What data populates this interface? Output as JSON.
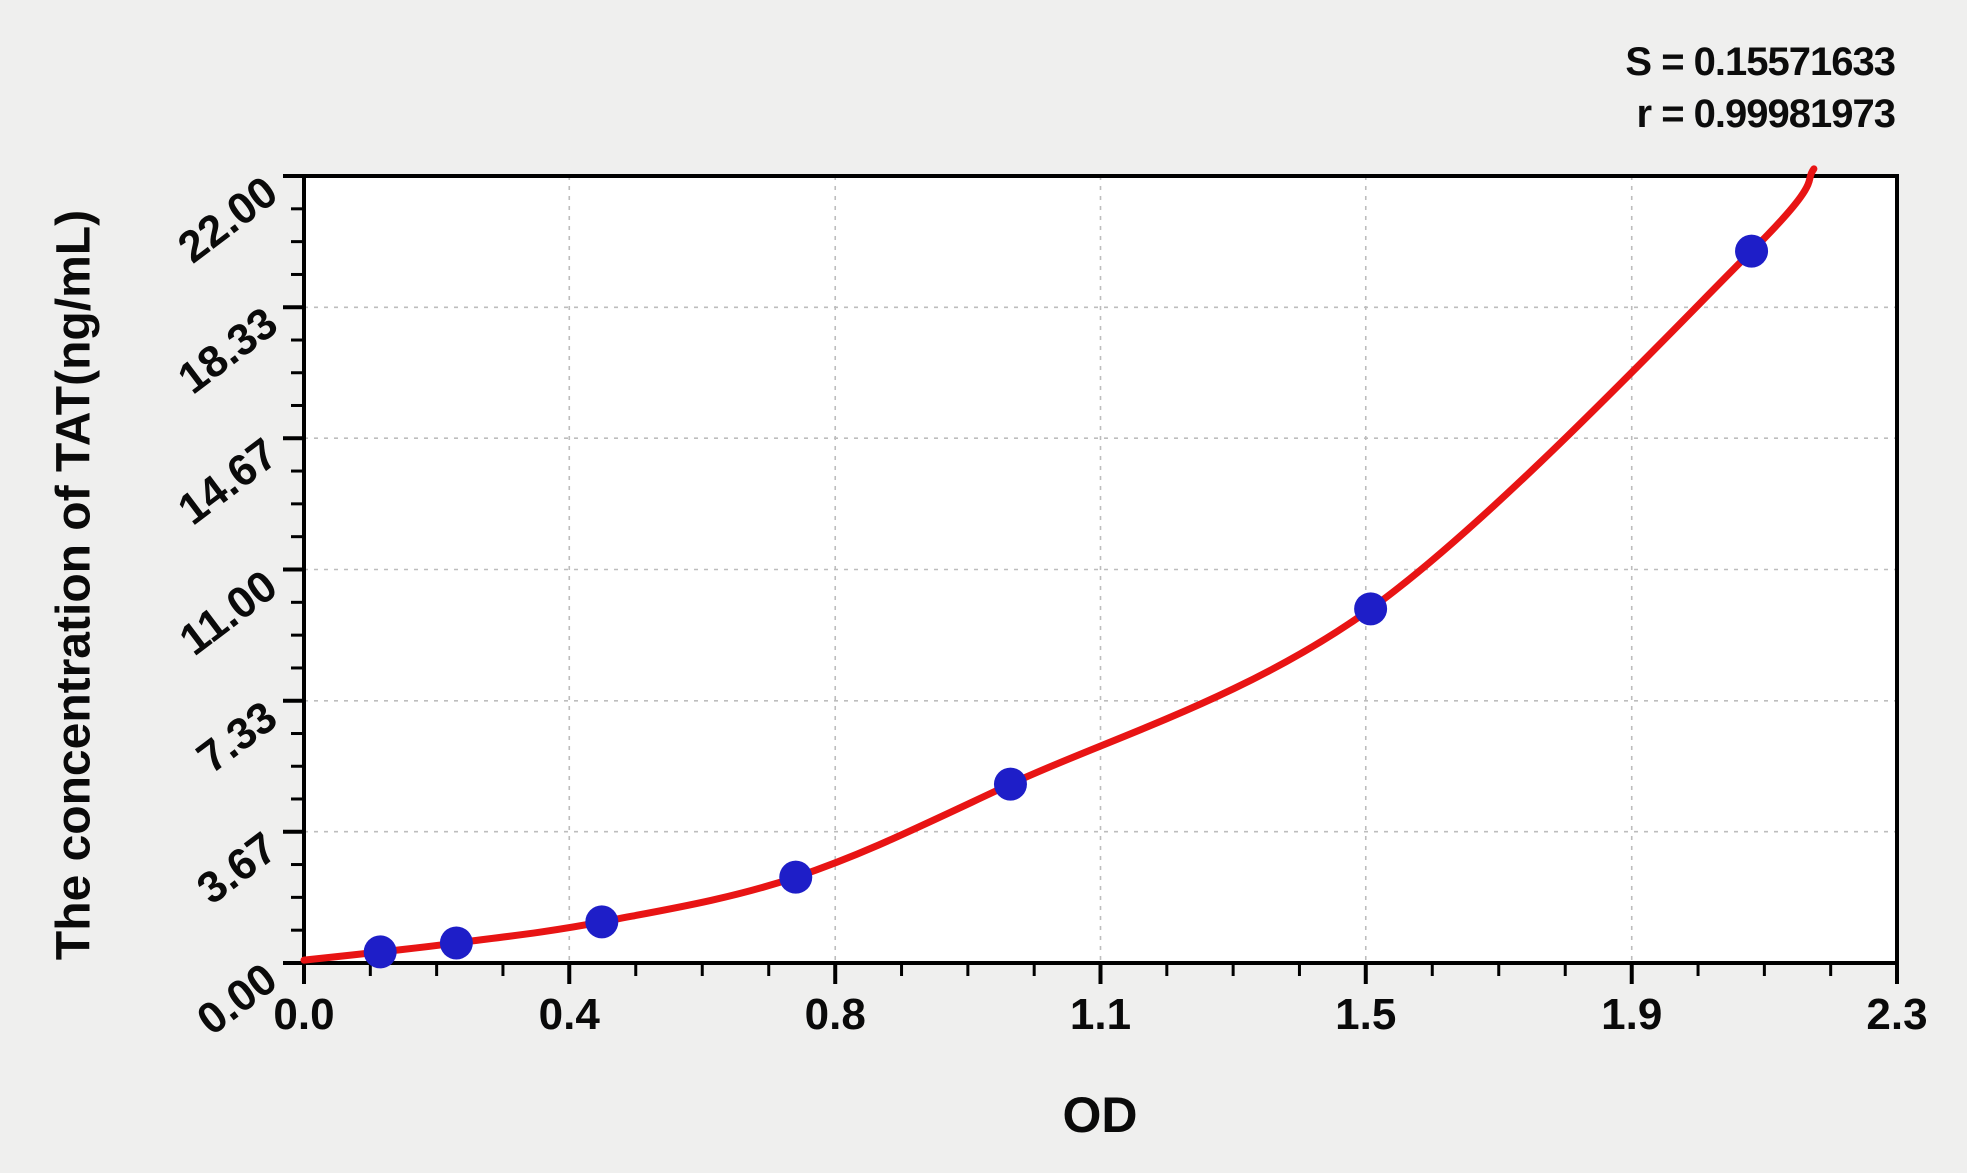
{
  "figure": {
    "background": "#efefee",
    "plot_background": "#ffffff"
  },
  "stats": {
    "s_label": "S = 0.15571633",
    "r_label": "r = 0.99981973"
  },
  "chart_data": {
    "type": "scatter",
    "title": "",
    "xlabel": "OD",
    "ylabel": "The concentration of TAT(ng/mL)",
    "xlim": [
      0,
      2.3
    ],
    "ylim": [
      0,
      22
    ],
    "x_tick_values": [
      0,
      0.383,
      0.767,
      1.15,
      1.533,
      1.917,
      2.3
    ],
    "x_tick_labels": [
      "0.0",
      "0.4",
      "0.8",
      "1.1",
      "1.5",
      "1.9",
      "2.3"
    ],
    "y_tick_values": [
      0,
      3.67,
      7.33,
      11.0,
      14.67,
      18.33,
      22.0
    ],
    "y_tick_labels": [
      "0.00",
      "3.67",
      "7.33",
      "11.00",
      "14.67",
      "18.33",
      "22.00"
    ],
    "minor_ticks_per_interval": 3,
    "grid": "dashed",
    "legend": "none",
    "points": [
      [
        0.11,
        0.31
      ],
      [
        0.22,
        0.56
      ],
      [
        0.43,
        1.15
      ],
      [
        0.71,
        2.4
      ],
      [
        1.02,
        5.0
      ],
      [
        1.54,
        9.9
      ],
      [
        2.09,
        19.9
      ]
    ],
    "fit_curve": [
      [
        0.0,
        0.08
      ],
      [
        0.11,
        0.31
      ],
      [
        0.22,
        0.56
      ],
      [
        0.43,
        1.15
      ],
      [
        0.71,
        2.4
      ],
      [
        1.02,
        5.0
      ],
      [
        1.54,
        9.9
      ],
      [
        2.09,
        19.9
      ],
      [
        2.18,
        22.2
      ]
    ],
    "colors": {
      "point": "#1e1ec8",
      "curve": "#e81414",
      "grid": "#bdbdbd",
      "axis": "#000000",
      "text": "#0a0a0a"
    }
  }
}
